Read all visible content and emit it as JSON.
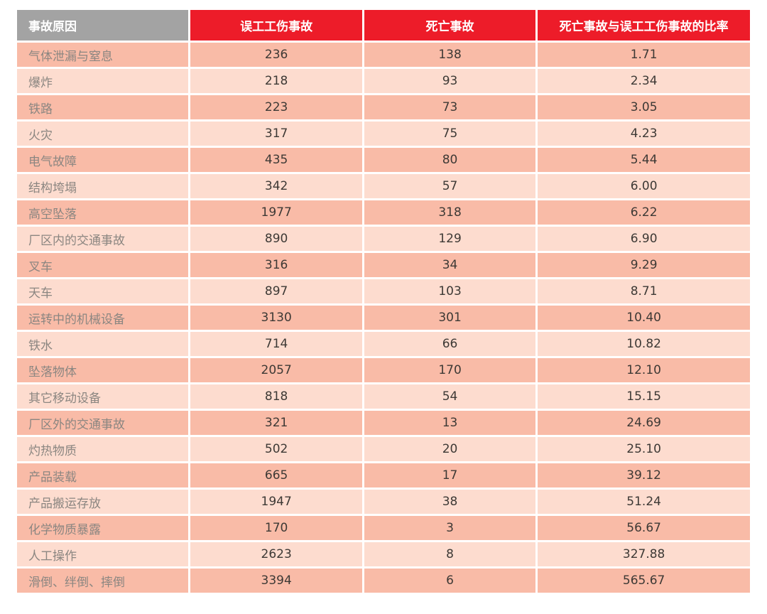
{
  "colors": {
    "header_gray": "#a3a3a3",
    "header_red": "#ed1c29",
    "row_odd": "#f9bba7",
    "row_even": "#fddccf",
    "label_text": "#8b8681",
    "number_text": "#3d3935",
    "header_text": "#ffffff",
    "page_bg": "#ffffff"
  },
  "table": {
    "columns": [
      {
        "label": "事故原因"
      },
      {
        "label": "误工工伤事故"
      },
      {
        "label": "死亡事故"
      },
      {
        "label": "死亡事故与误工工伤事故的比率"
      }
    ],
    "rows": [
      [
        "气体泄漏与窒息",
        "236",
        "138",
        "1.71"
      ],
      [
        "爆炸",
        "218",
        "93",
        "2.34"
      ],
      [
        "铁路",
        "223",
        "73",
        "3.05"
      ],
      [
        "火灾",
        "317",
        "75",
        "4.23"
      ],
      [
        "电气故障",
        "435",
        "80",
        "5.44"
      ],
      [
        "结构垮塌",
        "342",
        "57",
        "6.00"
      ],
      [
        "高空坠落",
        "1977",
        "318",
        "6.22"
      ],
      [
        "厂区内的交通事故",
        "890",
        "129",
        "6.90"
      ],
      [
        "叉车",
        "316",
        "34",
        "9.29"
      ],
      [
        "天车",
        "897",
        "103",
        "8.71"
      ],
      [
        "运转中的机械设备",
        "3130",
        "301",
        "10.40"
      ],
      [
        "铁水",
        "714",
        "66",
        "10.82"
      ],
      [
        "坠落物体",
        "2057",
        "170",
        "12.10"
      ],
      [
        "其它移动设备",
        "818",
        "54",
        "15.15"
      ],
      [
        "厂区外的交通事故",
        "321",
        "13",
        "24.69"
      ],
      [
        "灼热物质",
        "502",
        "20",
        "25.10"
      ],
      [
        "产品装载",
        "665",
        "17",
        "39.12"
      ],
      [
        "产品搬运存放",
        "1947",
        "38",
        "51.24"
      ],
      [
        "化学物质暴露",
        "170",
        "3",
        "56.67"
      ],
      [
        "人工操作",
        "2623",
        "8",
        "327.88"
      ],
      [
        "滑倒、绊倒、摔倒",
        "3394",
        "6",
        "565.67"
      ]
    ]
  },
  "chart_data": {
    "type": "table",
    "title": "",
    "columns": [
      "事故原因",
      "误工工伤事故",
      "死亡事故",
      "死亡事故与误工工伤事故的比率"
    ],
    "rows": [
      [
        "气体泄漏与窒息",
        236,
        138,
        1.71
      ],
      [
        "爆炸",
        218,
        93,
        2.34
      ],
      [
        "铁路",
        223,
        73,
        3.05
      ],
      [
        "火灾",
        317,
        75,
        4.23
      ],
      [
        "电气故障",
        435,
        80,
        5.44
      ],
      [
        "结构垮塌",
        342,
        57,
        6.0
      ],
      [
        "高空坠落",
        1977,
        318,
        6.22
      ],
      [
        "厂区内的交通事故",
        890,
        129,
        6.9
      ],
      [
        "叉车",
        316,
        34,
        9.29
      ],
      [
        "天车",
        897,
        103,
        8.71
      ],
      [
        "运转中的机械设备",
        3130,
        301,
        10.4
      ],
      [
        "铁水",
        714,
        66,
        10.82
      ],
      [
        "坠落物体",
        2057,
        170,
        12.1
      ],
      [
        "其它移动设备",
        818,
        54,
        15.15
      ],
      [
        "厂区外的交通事故",
        321,
        13,
        24.69
      ],
      [
        "灼热物质",
        502,
        20,
        25.1
      ],
      [
        "产品装载",
        665,
        17,
        39.12
      ],
      [
        "产品搬运存放",
        1947,
        38,
        51.24
      ],
      [
        "化学物质暴露",
        170,
        3,
        56.67
      ],
      [
        "人工操作",
        2623,
        8,
        327.88
      ],
      [
        "滑倒、绊倒、摔倒",
        3394,
        6,
        565.67
      ]
    ],
    "layout": {
      "header_row": true,
      "alternating_row_shading": true,
      "first_column_align": "left",
      "value_columns_align": "center"
    }
  }
}
